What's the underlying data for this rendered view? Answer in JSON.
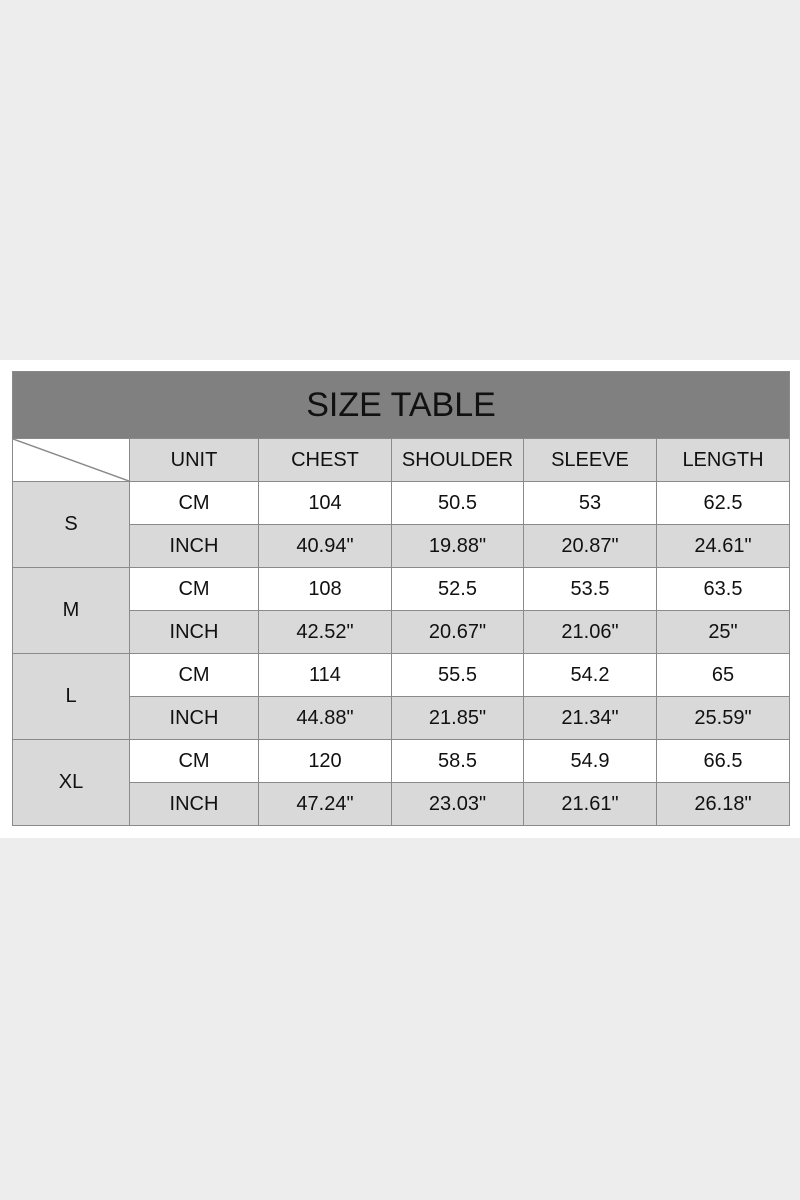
{
  "title": "SIZE TABLE",
  "headers": [
    "UNIT",
    "CHEST",
    "SHOULDER",
    "SLEEVE",
    "LENGTH"
  ],
  "sizes": [
    {
      "size": "S",
      "cm": {
        "unit": "CM",
        "values": [
          "104",
          "50.5",
          "53",
          "62.5"
        ]
      },
      "inch": {
        "unit": "INCH",
        "values": [
          "40.94\"",
          "19.88\"",
          "20.87\"",
          "24.61\""
        ]
      }
    },
    {
      "size": "M",
      "cm": {
        "unit": "CM",
        "values": [
          "108",
          "52.5",
          "53.5",
          "63.5"
        ]
      },
      "inch": {
        "unit": "INCH",
        "values": [
          "42.52\"",
          "20.67\"",
          "21.06\"",
          "25\""
        ]
      }
    },
    {
      "size": "L",
      "cm": {
        "unit": "CM",
        "values": [
          "114",
          "55.5",
          "54.2",
          "65"
        ]
      },
      "inch": {
        "unit": "INCH",
        "values": [
          "44.88\"",
          "21.85\"",
          "21.34\"",
          "25.59\""
        ]
      }
    },
    {
      "size": "XL",
      "cm": {
        "unit": "CM",
        "values": [
          "120",
          "58.5",
          "54.9",
          "66.5"
        ]
      },
      "inch": {
        "unit": "INCH",
        "values": [
          "47.24\"",
          "23.03\"",
          "21.61\"",
          "26.18\""
        ]
      }
    }
  ],
  "colors": {
    "background": "#ededed",
    "title_bar": "#808080",
    "shaded_cell": "#d9d9d9"
  }
}
